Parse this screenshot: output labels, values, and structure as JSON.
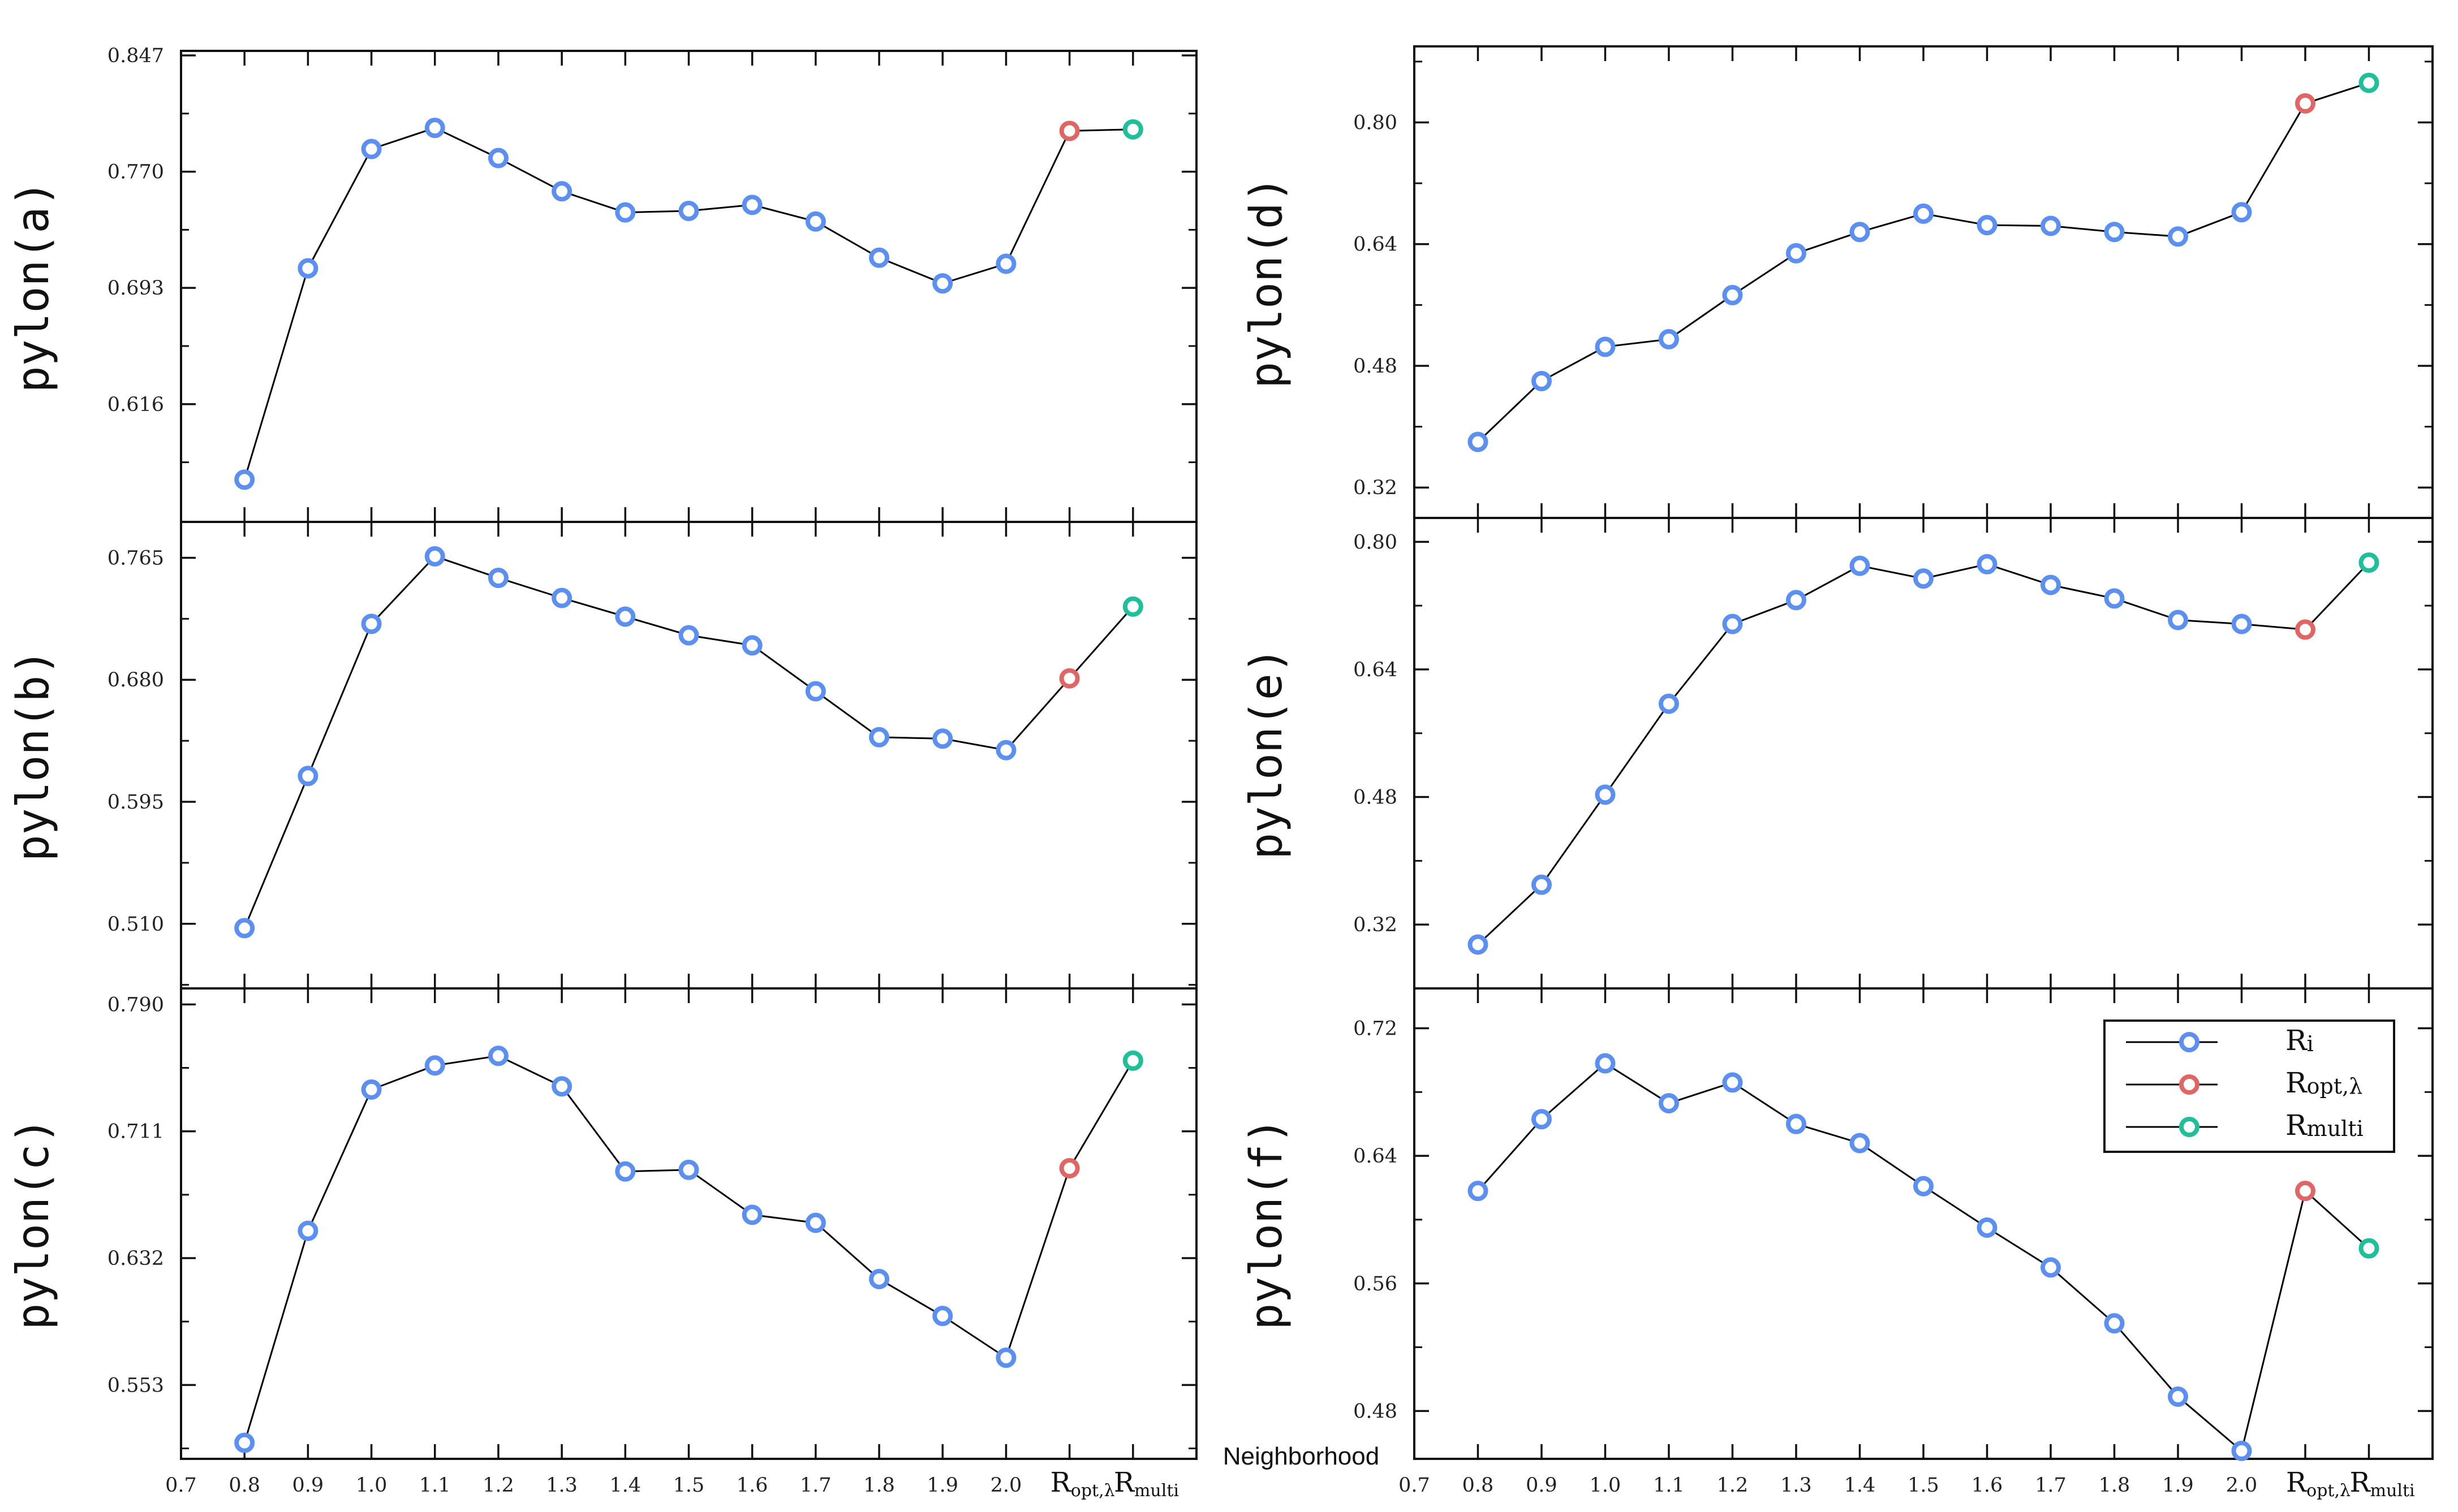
{
  "colors": {
    "ri": "#5b8ff0",
    "ropt": "#e06666",
    "rmulti": "#1fbf9a",
    "line": "#000000",
    "axis": "#111111"
  },
  "x_axis": {
    "title": "Neighborhood",
    "tick_labels": [
      "0.7",
      "0.8",
      "0.9",
      "1.0",
      "1.1",
      "1.2",
      "1.3",
      "1.4",
      "1.5",
      "1.6",
      "1.7",
      "1.8",
      "1.9",
      "2.0"
    ],
    "special_labels": [
      {
        "main": "R",
        "sub": "opt,λ"
      },
      {
        "main": "R",
        "sub": "multi"
      }
    ]
  },
  "legend": {
    "entries": [
      {
        "main": "R",
        "sub": "i",
        "series": "ri"
      },
      {
        "main": "R",
        "sub": "opt,λ",
        "series": "ropt"
      },
      {
        "main": "R",
        "sub": "multi",
        "series": "rmulti"
      }
    ]
  },
  "chart_data": [
    {
      "id": "a",
      "type": "line",
      "ylabel": "pylon(a)",
      "ylim": [
        0.538,
        0.85
      ],
      "yticks": [
        0.616,
        0.693,
        0.77,
        0.847
      ],
      "ytick_labels": [
        "0.616",
        "0.693",
        "0.770",
        "0.847"
      ],
      "x": [
        0.8,
        0.9,
        1.0,
        1.1,
        1.2,
        1.3,
        1.4,
        1.5,
        1.6,
        1.7,
        1.8,
        1.9,
        2.0,
        "Ropt,λ",
        "Rmulti"
      ],
      "values": [
        0.566,
        0.706,
        0.785,
        0.799,
        0.779,
        0.757,
        0.743,
        0.744,
        0.748,
        0.737,
        0.713,
        0.696,
        0.709,
        0.797,
        0.798
      ]
    },
    {
      "id": "b",
      "type": "line",
      "ylabel": "pylon(b)",
      "ylim": [
        0.465,
        0.79
      ],
      "yticks": [
        0.51,
        0.595,
        0.68,
        0.765
      ],
      "ytick_labels": [
        "0.510",
        "0.595",
        "0.680",
        "0.765"
      ],
      "x": [
        0.8,
        0.9,
        1.0,
        1.1,
        1.2,
        1.3,
        1.4,
        1.5,
        1.6,
        1.7,
        1.8,
        1.9,
        2.0,
        "Ropt,λ",
        "Rmulti"
      ],
      "values": [
        0.507,
        0.613,
        0.719,
        0.766,
        0.751,
        0.737,
        0.724,
        0.711,
        0.704,
        0.672,
        0.64,
        0.639,
        0.631,
        0.681,
        0.731
      ]
    },
    {
      "id": "c",
      "type": "line",
      "ylabel": "pylon(c)",
      "ylim": [
        0.507,
        0.8
      ],
      "yticks": [
        0.553,
        0.632,
        0.711,
        0.79
      ],
      "ytick_labels": [
        "0.553",
        "0.632",
        "0.711",
        "0.790"
      ],
      "x": [
        0.8,
        0.9,
        1.0,
        1.1,
        1.2,
        1.3,
        1.4,
        1.5,
        1.6,
        1.7,
        1.8,
        1.9,
        2.0,
        "Ropt,λ",
        "Rmulti"
      ],
      "values": [
        0.517,
        0.649,
        0.737,
        0.752,
        0.758,
        0.739,
        0.686,
        0.687,
        0.659,
        0.654,
        0.619,
        0.596,
        0.57,
        0.688,
        0.755
      ]
    },
    {
      "id": "d",
      "type": "line",
      "ylabel": "pylon(d)",
      "ylim": [
        0.28,
        0.9
      ],
      "yticks": [
        0.32,
        0.48,
        0.64,
        0.8
      ],
      "ytick_labels": [
        "0.32",
        "0.48",
        "0.64",
        "0.80"
      ],
      "x": [
        0.8,
        0.9,
        1.0,
        1.1,
        1.2,
        1.3,
        1.4,
        1.5,
        1.6,
        1.7,
        1.8,
        1.9,
        2.0,
        "Ropt,λ",
        "Rmulti"
      ],
      "values": [
        0.38,
        0.46,
        0.505,
        0.515,
        0.573,
        0.628,
        0.656,
        0.68,
        0.665,
        0.664,
        0.656,
        0.65,
        0.682,
        0.825,
        0.852
      ]
    },
    {
      "id": "e",
      "type": "line",
      "ylabel": "pylon(e)",
      "ylim": [
        0.24,
        0.83
      ],
      "yticks": [
        0.32,
        0.48,
        0.64,
        0.8
      ],
      "ytick_labels": [
        "0.32",
        "0.48",
        "0.64",
        "0.80"
      ],
      "x": [
        0.8,
        0.9,
        1.0,
        1.1,
        1.2,
        1.3,
        1.4,
        1.5,
        1.6,
        1.7,
        1.8,
        1.9,
        2.0,
        "Ropt,λ",
        "Rmulti"
      ],
      "values": [
        0.295,
        0.37,
        0.483,
        0.597,
        0.697,
        0.727,
        0.77,
        0.754,
        0.772,
        0.746,
        0.729,
        0.702,
        0.697,
        0.69,
        0.774
      ]
    },
    {
      "id": "f",
      "type": "line",
      "ylabel": "pylon(f)",
      "ylim": [
        0.45,
        0.745
      ],
      "yticks": [
        0.48,
        0.56,
        0.64,
        0.72
      ],
      "ytick_labels": [
        "0.48",
        "0.56",
        "0.64",
        "0.72"
      ],
      "x": [
        0.8,
        0.9,
        1.0,
        1.1,
        1.2,
        1.3,
        1.4,
        1.5,
        1.6,
        1.7,
        1.8,
        1.9,
        2.0,
        "Ropt,λ",
        "Rmulti"
      ],
      "values": [
        0.618,
        0.663,
        0.698,
        0.673,
        0.686,
        0.66,
        0.648,
        0.621,
        0.595,
        0.57,
        0.535,
        0.489,
        0.455,
        0.618,
        0.582
      ]
    }
  ]
}
